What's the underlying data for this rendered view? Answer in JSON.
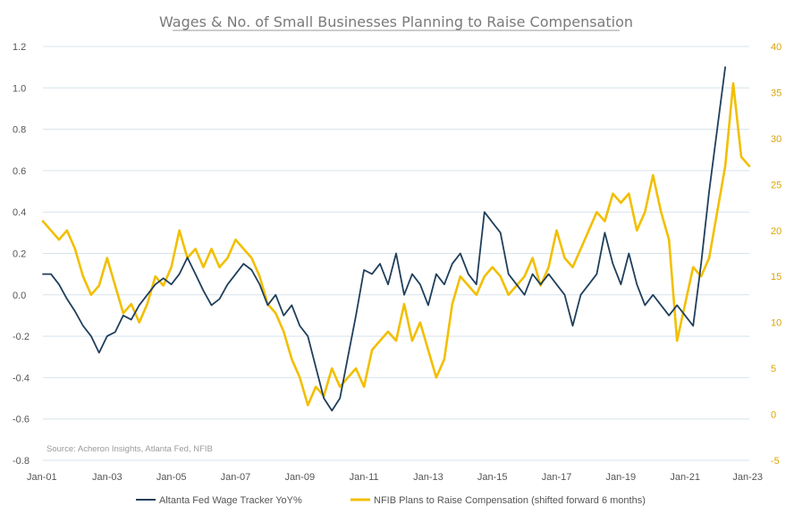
{
  "chart_data": {
    "type": "line",
    "title": "Wages & No. of Small Businesses Planning to Raise Compensation",
    "source": "Source: Acheron Insights, Atlanta Fed, NFIB",
    "x_ticks": [
      "Jan-01",
      "Jan-03",
      "Jan-05",
      "Jan-07",
      "Jan-09",
      "Jan-11",
      "Jan-13",
      "Jan-15",
      "Jan-17",
      "Jan-19",
      "Jan-21",
      "Jan-23"
    ],
    "x_range": [
      2001.0,
      2023.0
    ],
    "y_left": {
      "range": [
        -0.8,
        1.2
      ],
      "ticks": [
        "1.2",
        "1.0",
        "0.8",
        "0.6",
        "0.4",
        "0.2",
        "0.0",
        "-0.2",
        "-0.4",
        "-0.6",
        "-0.8"
      ]
    },
    "y_right": {
      "range": [
        -5,
        40
      ],
      "ticks": [
        "40",
        "35",
        "30",
        "25",
        "20",
        "15",
        "10",
        "5",
        "0",
        "-5"
      ]
    },
    "grid": true,
    "legend_position": "bottom",
    "colors": {
      "wage": "#1f3f5c",
      "nfib": "#f2bf00",
      "grid": "#d7e3ec"
    },
    "series": [
      {
        "name": "Altanta Fed Wage Tracker YoY%",
        "axis": "left",
        "x": [
          2001.0,
          2001.25,
          2001.5,
          2001.75,
          2002.0,
          2002.25,
          2002.5,
          2002.75,
          2003.0,
          2003.25,
          2003.5,
          2003.75,
          2004.0,
          2004.25,
          2004.5,
          2004.75,
          2005.0,
          2005.25,
          2005.5,
          2005.75,
          2006.0,
          2006.25,
          2006.5,
          2006.75,
          2007.0,
          2007.25,
          2007.5,
          2007.75,
          2008.0,
          2008.25,
          2008.5,
          2008.75,
          2009.0,
          2009.25,
          2009.5,
          2009.75,
          2010.0,
          2010.25,
          2010.5,
          2010.75,
          2011.0,
          2011.25,
          2011.5,
          2011.75,
          2012.0,
          2012.25,
          2012.5,
          2012.75,
          2013.0,
          2013.25,
          2013.5,
          2013.75,
          2014.0,
          2014.25,
          2014.5,
          2014.75,
          2015.0,
          2015.25,
          2015.5,
          2015.75,
          2016.0,
          2016.25,
          2016.5,
          2016.75,
          2017.0,
          2017.25,
          2017.5,
          2017.75,
          2018.0,
          2018.25,
          2018.5,
          2018.75,
          2019.0,
          2019.25,
          2019.5,
          2019.75,
          2020.0,
          2020.25,
          2020.5,
          2020.75,
          2021.0,
          2021.25,
          2021.5,
          2021.75,
          2022.0,
          2022.25
        ],
        "values": [
          0.1,
          0.1,
          0.05,
          -0.02,
          -0.08,
          -0.15,
          -0.2,
          -0.28,
          -0.2,
          -0.18,
          -0.1,
          -0.12,
          -0.05,
          0.0,
          0.05,
          0.08,
          0.05,
          0.1,
          0.18,
          0.1,
          0.02,
          -0.05,
          -0.02,
          0.05,
          0.1,
          0.15,
          0.12,
          0.05,
          -0.05,
          0.0,
          -0.1,
          -0.05,
          -0.15,
          -0.2,
          -0.35,
          -0.5,
          -0.56,
          -0.5,
          -0.3,
          -0.1,
          0.12,
          0.1,
          0.15,
          0.05,
          0.2,
          0.0,
          0.1,
          0.05,
          -0.05,
          0.1,
          0.05,
          0.15,
          0.2,
          0.1,
          0.05,
          0.4,
          0.35,
          0.3,
          0.1,
          0.05,
          0.0,
          0.1,
          0.05,
          0.1,
          0.05,
          0.0,
          -0.15,
          0.0,
          0.05,
          0.1,
          0.3,
          0.15,
          0.05,
          0.2,
          0.05,
          -0.05,
          0.0,
          -0.05,
          -0.1,
          -0.05,
          -0.1,
          -0.15,
          0.15,
          0.5,
          0.8,
          1.1
        ]
      },
      {
        "name": "NFIB Plans to Raise Compensation (shifted forward 6 months)",
        "axis": "right",
        "x": [
          2001.0,
          2001.25,
          2001.5,
          2001.75,
          2002.0,
          2002.25,
          2002.5,
          2002.75,
          2003.0,
          2003.25,
          2003.5,
          2003.75,
          2004.0,
          2004.25,
          2004.5,
          2004.75,
          2005.0,
          2005.25,
          2005.5,
          2005.75,
          2006.0,
          2006.25,
          2006.5,
          2006.75,
          2007.0,
          2007.25,
          2007.5,
          2007.75,
          2008.0,
          2008.25,
          2008.5,
          2008.75,
          2009.0,
          2009.25,
          2009.5,
          2009.75,
          2010.0,
          2010.25,
          2010.5,
          2010.75,
          2011.0,
          2011.25,
          2011.5,
          2011.75,
          2012.0,
          2012.25,
          2012.5,
          2012.75,
          2013.0,
          2013.25,
          2013.5,
          2013.75,
          2014.0,
          2014.25,
          2014.5,
          2014.75,
          2015.0,
          2015.25,
          2015.5,
          2015.75,
          2016.0,
          2016.25,
          2016.5,
          2016.75,
          2017.0,
          2017.25,
          2017.5,
          2017.75,
          2018.0,
          2018.25,
          2018.5,
          2018.75,
          2019.0,
          2019.25,
          2019.5,
          2019.75,
          2020.0,
          2020.25,
          2020.5,
          2020.75,
          2021.0,
          2021.25,
          2021.5,
          2021.75,
          2022.0,
          2022.25,
          2022.5,
          2022.75,
          2023.0
        ],
        "values": [
          21,
          20,
          19,
          20,
          18,
          15,
          13,
          14,
          17,
          14,
          11,
          12,
          10,
          12,
          15,
          14,
          16,
          20,
          17,
          18,
          16,
          18,
          16,
          17,
          19,
          18,
          17,
          15,
          12,
          11,
          9,
          6,
          4,
          1,
          3,
          2,
          5,
          3,
          4,
          5,
          3,
          7,
          8,
          9,
          8,
          12,
          8,
          10,
          7,
          4,
          6,
          12,
          15,
          14,
          13,
          15,
          16,
          15,
          13,
          14,
          15,
          17,
          14,
          16,
          20,
          17,
          16,
          18,
          20,
          22,
          21,
          24,
          23,
          24,
          20,
          22,
          26,
          22,
          19,
          8,
          12,
          16,
          15,
          17,
          22,
          27,
          36,
          28,
          27
        ]
      }
    ]
  }
}
